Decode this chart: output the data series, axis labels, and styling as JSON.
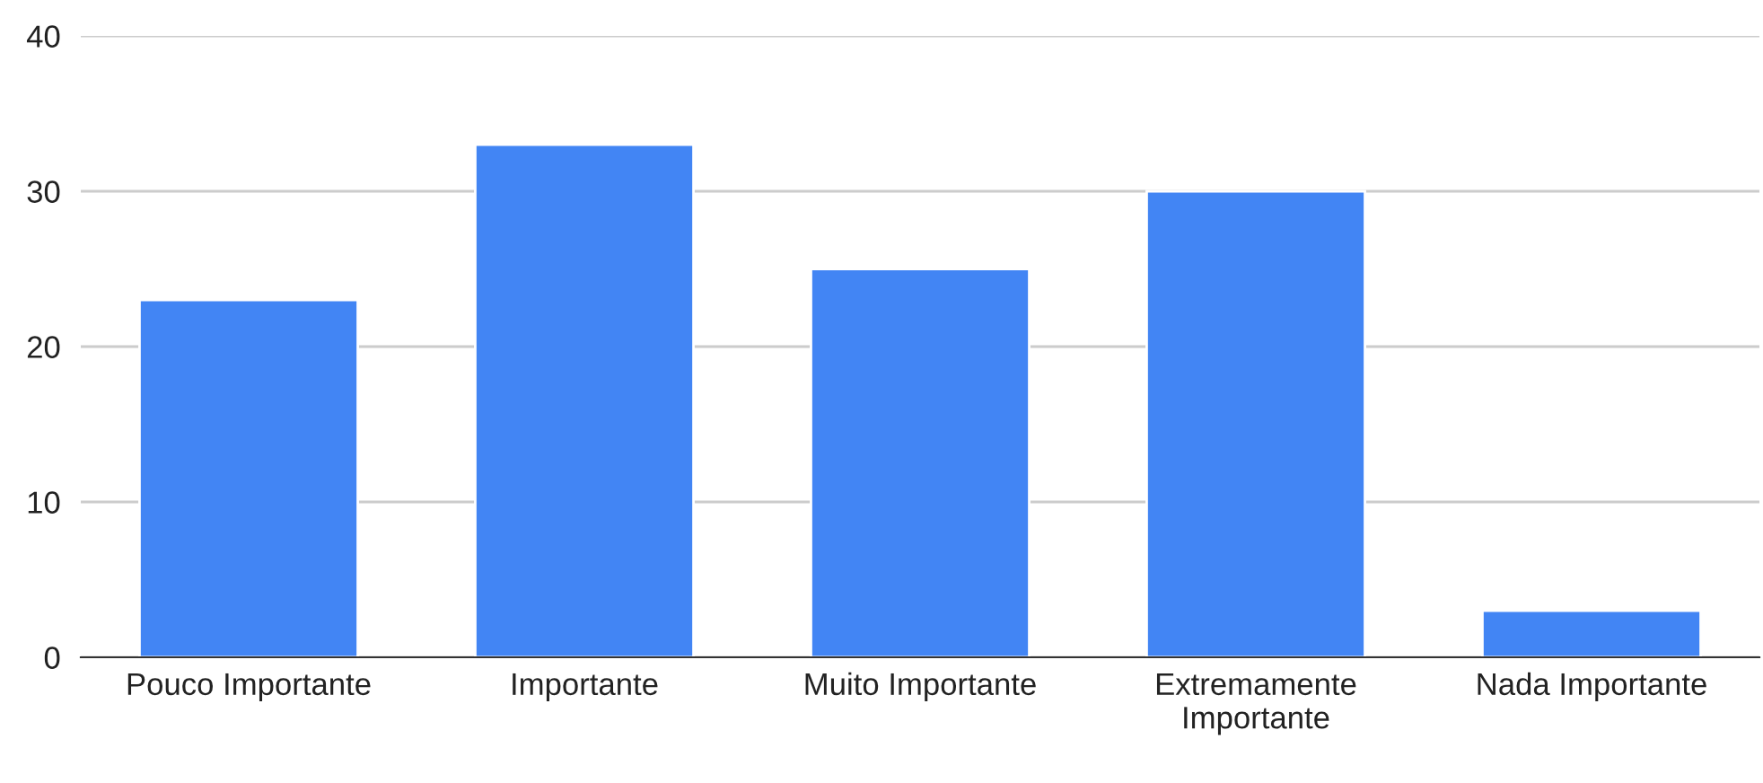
{
  "chart_data": {
    "type": "bar",
    "categories": [
      "Pouco Importante",
      "Importante",
      "Muito Importante",
      "Extremamente Importante",
      "Nada Importante"
    ],
    "values": [
      23,
      33,
      25,
      30,
      3
    ],
    "color": "#4285f4",
    "ylim": [
      0,
      40
    ],
    "yticks": [
      0,
      10,
      20,
      30,
      40
    ],
    "grid": "y",
    "legend": false
  }
}
